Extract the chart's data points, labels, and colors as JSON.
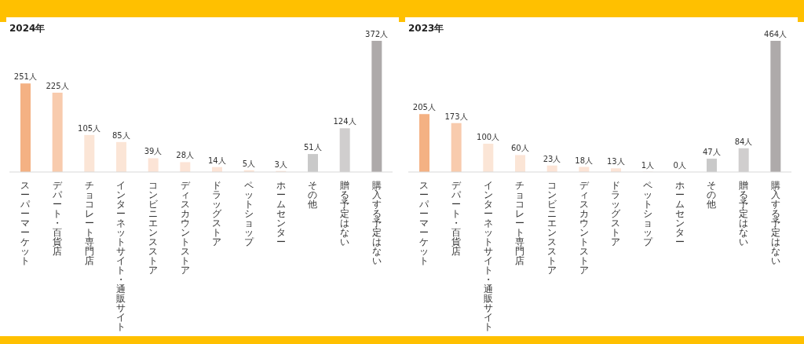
{
  "chart_data": [
    {
      "type": "bar",
      "title": "2024年",
      "categories": [
        "スーパーマーケット",
        "デパート・百貨店",
        "チョコレート専門店",
        "インターネットサイト・通販サイト",
        "コンビニエンスストア",
        "ディスカウントストア",
        "ドラッグストア",
        "ペットショップ",
        "ホームセンター",
        "その他",
        "贈る予定はない",
        "購入する予定はない"
      ],
      "values": [
        251,
        225,
        105,
        85,
        39,
        28,
        14,
        5,
        3,
        51,
        124,
        372
      ],
      "value_labels": [
        "251人",
        "225人",
        "105人",
        "85人",
        "39人",
        "28人",
        "14人",
        "5人",
        "3人",
        "51人",
        "124人",
        "372人"
      ],
      "colors": [
        "#f4b183",
        "#f8cbad",
        "#fbe5d6",
        "#fbe5d6",
        "#fce4d6",
        "#fce4d6",
        "#fce4d6",
        "#fce4d6",
        "#fce4d6",
        "#c9c9c9",
        "#d0cece",
        "#aeaaaa"
      ],
      "tick_labels": "x"
    },
    {
      "type": "bar",
      "title": "2023年",
      "categories": [
        "スーパーマーケット",
        "デパート・百貨店",
        "インターネットサイト・通販サイト",
        "チョコレート専門店",
        "コンビニエンスストア",
        "ディスカウントストア",
        "ドラッグストア",
        "ペットショップ",
        "ホームセンター",
        "その他",
        "贈る予定はない",
        "購入する予定はない"
      ],
      "values": [
        205,
        173,
        100,
        60,
        23,
        18,
        13,
        1,
        0,
        47,
        84,
        464
      ],
      "value_labels": [
        "205人",
        "173人",
        "100人",
        "60人",
        "23人",
        "18人",
        "13人",
        "1人",
        "0人",
        "47人",
        "84人",
        "464人"
      ],
      "colors": [
        "#f4b183",
        "#f8cbad",
        "#fbe5d6",
        "#fbe5d6",
        "#fce4d6",
        "#fce4d6",
        "#fce4d6",
        "#fce4d6",
        "#fce4d6",
        "#c9c9c9",
        "#d0cece",
        "#aeaaaa"
      ],
      "tick_labels": "x"
    }
  ]
}
